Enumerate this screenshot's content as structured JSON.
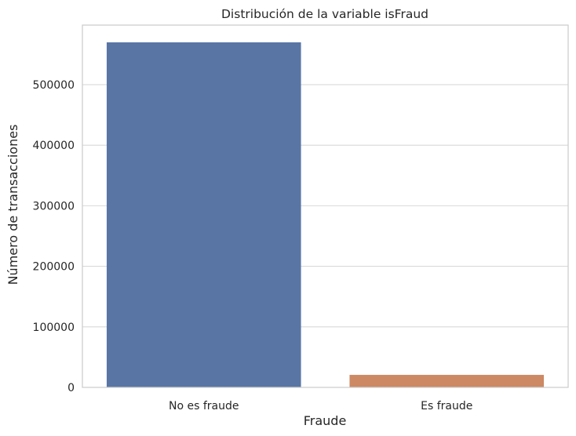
{
  "chart_data": {
    "type": "bar",
    "title": "Distribución de la variable isFraud",
    "xlabel": "Fraude",
    "ylabel": "Número de transacciones",
    "categories": [
      "No es fraude",
      "Es fraude"
    ],
    "values": [
      569877,
      20663
    ],
    "colors": [
      "#5875a4",
      "#cc8963"
    ],
    "ylim": [
      0,
      598371
    ],
    "yticks": [
      0,
      100000,
      200000,
      300000,
      400000,
      500000
    ],
    "grid": true,
    "legend": "none"
  }
}
